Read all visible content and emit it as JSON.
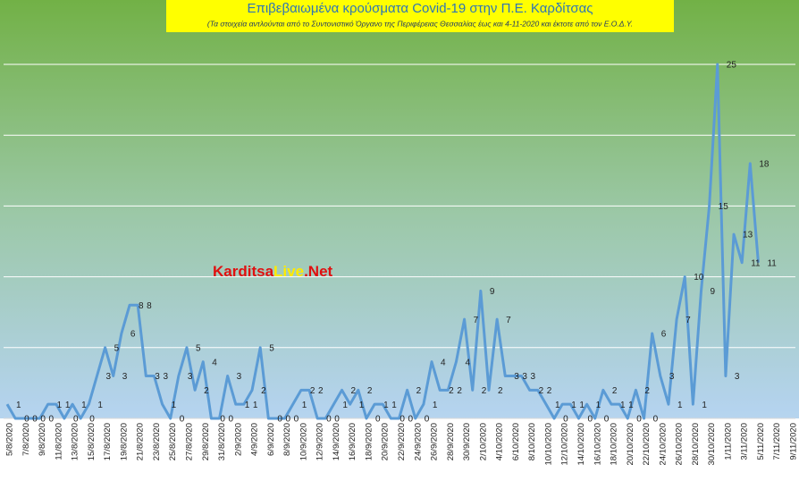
{
  "chart_data": {
    "type": "line",
    "title": "Επιβεβαιωμένα κρούσματα Covid-19 στην Π.Ε. Καρδίτσας",
    "subtitle": "(Τα στοιχεία αντλούνται από το Συντονιστικό Όργανο της Περιφέρειας Θεσσαλίας έως και 4-11-2020 και έκτοτε από τον Ε.Ο.Δ.Υ.",
    "watermark": [
      "Karditsa",
      "Live",
      ".Net"
    ],
    "categories": [
      "5/8/2020",
      null,
      "7/8/2020",
      null,
      "9/8/2020",
      null,
      "11/8/2020",
      null,
      "13/8/2020",
      null,
      "15/8/2020",
      null,
      "17/8/2020",
      null,
      "19/8/2020",
      null,
      "21/8/2020",
      null,
      "23/8/2020",
      null,
      "25/8/2020",
      null,
      "27/8/2020",
      null,
      "29/8/2020",
      null,
      "31/8/2020",
      null,
      "2/9/2020",
      null,
      "4/9/2020",
      null,
      "6/9/2020",
      null,
      "8/9/2020",
      null,
      "10/9/2020",
      null,
      "12/9/2020",
      null,
      "14/9/2020",
      null,
      "16/9/2020",
      null,
      "18/9/2020",
      null,
      "20/9/2020",
      null,
      "22/9/2020",
      null,
      "24/9/2020",
      null,
      "26/9/2020",
      null,
      "28/9/2020",
      null,
      "30/9/2020",
      null,
      "2/10/2020",
      null,
      "4/10/2020",
      null,
      "6/10/2020",
      null,
      "8/10/2020",
      null,
      "10/10/2020",
      null,
      "12/10/2020",
      null,
      "14/10/2020",
      null,
      "16/10/2020",
      null,
      "18/10/2020",
      null,
      "20/10/2020",
      null,
      "22/10/2020",
      null,
      "24/10/2020",
      null,
      "26/10/2020",
      null,
      "28/10/2020",
      null,
      "30/10/2020",
      null,
      "1/11/2020",
      null,
      "3/11/2020",
      null,
      "5/11/2020",
      null,
      "7/11/2020",
      null,
      "9/11/2020"
    ],
    "values": [
      1,
      0,
      0,
      0,
      0,
      1,
      1,
      0,
      1,
      0,
      1,
      3,
      5,
      3,
      6,
      8,
      8,
      3,
      3,
      1,
      0,
      3,
      5,
      2,
      4,
      0,
      0,
      3,
      1,
      1,
      2,
      5,
      0,
      0,
      0,
      1,
      2,
      2,
      0,
      0,
      1,
      2,
      1,
      2,
      0,
      1,
      1,
      0,
      0,
      2,
      0,
      1,
      4,
      2,
      2,
      4,
      7,
      2,
      9,
      2,
      7,
      3,
      3,
      3,
      2,
      2,
      1,
      0,
      1,
      1,
      0,
      1,
      0,
      2,
      1,
      1,
      0,
      2,
      0,
      6,
      3,
      1,
      7,
      10,
      1,
      9,
      15,
      25,
      3,
      13,
      11,
      18,
      11,
      null,
      null,
      null,
      null
    ],
    "color": "#5b9bd5",
    "ylim": [
      0,
      25
    ],
    "gridlines": [
      5,
      10,
      15,
      20,
      25
    ],
    "grid": true
  }
}
